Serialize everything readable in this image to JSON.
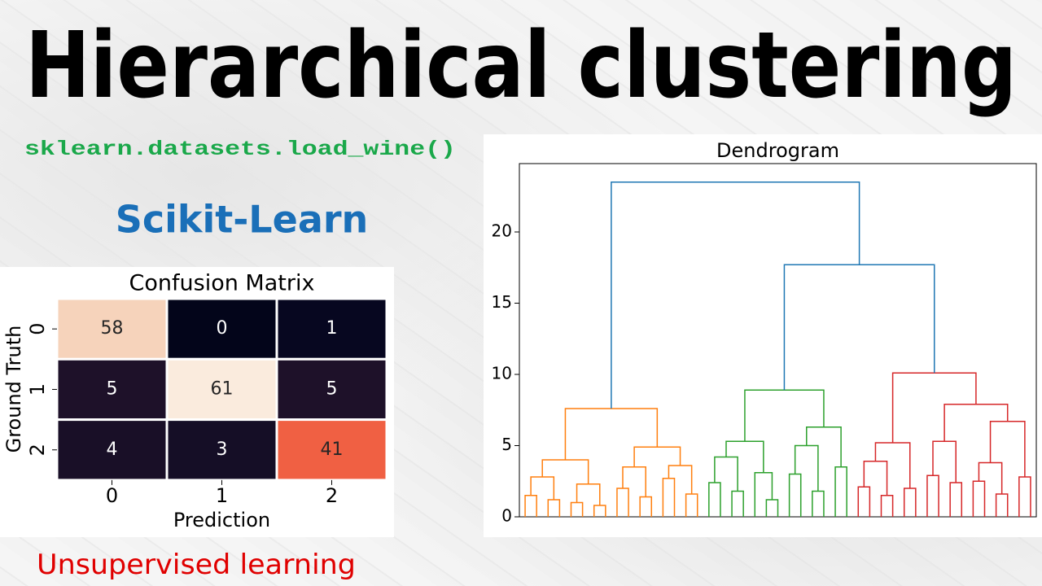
{
  "title": "Hierarchical clustering",
  "code": "sklearn.datasets.load_wine()",
  "library": "Scikit-Learn",
  "footer": "Unsupervised learning",
  "chart_data": [
    {
      "type": "heatmap",
      "title": "Confusion Matrix",
      "x_label": "Prediction",
      "y_label": "Ground Truth",
      "x_categories": [
        "0",
        "1",
        "2"
      ],
      "y_categories": [
        "0",
        "1",
        "2"
      ],
      "values": [
        [
          58,
          0,
          1
        ],
        [
          5,
          61,
          5
        ],
        [
          4,
          3,
          41
        ]
      ],
      "colors": [
        [
          "#f6d3bb",
          "#03051a",
          "#070720"
        ],
        [
          "#1e1129",
          "#faebdd",
          "#1e1129"
        ],
        [
          "#190f27",
          "#150e26",
          "#f06043"
        ]
      ]
    },
    {
      "type": "dendrogram",
      "title": "Dendrogram",
      "ylim": [
        0,
        24.8
      ],
      "yticks": [
        0,
        5,
        10,
        15,
        20
      ],
      "tree": {
        "height": 23.5,
        "color": "#1f77b4",
        "children": [
          {
            "height": 7.6,
            "color": "#ff7f0e",
            "children": [
              {
                "height": 4.0,
                "children": [
                  {
                    "height": 2.8,
                    "children": [
                      {
                        "height": 1.5,
                        "children": [
                          {
                            "height": 0
                          },
                          {
                            "height": 0
                          }
                        ]
                      },
                      {
                        "height": 1.2,
                        "children": [
                          {
                            "height": 0
                          },
                          {
                            "height": 0
                          }
                        ]
                      }
                    ]
                  },
                  {
                    "height": 2.3,
                    "children": [
                      {
                        "height": 1.0,
                        "children": [
                          {
                            "height": 0
                          },
                          {
                            "height": 0
                          }
                        ]
                      },
                      {
                        "height": 0.8,
                        "children": [
                          {
                            "height": 0
                          },
                          {
                            "height": 0
                          }
                        ]
                      }
                    ]
                  }
                ]
              },
              {
                "height": 4.9,
                "children": [
                  {
                    "height": 3.5,
                    "children": [
                      {
                        "height": 2.0,
                        "children": [
                          {
                            "height": 0
                          },
                          {
                            "height": 0
                          }
                        ]
                      },
                      {
                        "height": 1.4,
                        "children": [
                          {
                            "height": 0
                          },
                          {
                            "height": 0
                          }
                        ]
                      }
                    ]
                  },
                  {
                    "height": 3.6,
                    "children": [
                      {
                        "height": 2.7,
                        "children": [
                          {
                            "height": 0
                          },
                          {
                            "height": 0
                          }
                        ]
                      },
                      {
                        "height": 1.6,
                        "children": [
                          {
                            "height": 0
                          },
                          {
                            "height": 0
                          }
                        ]
                      }
                    ]
                  }
                ]
              }
            ]
          },
          {
            "height": 17.7,
            "children": [
              {
                "height": 8.9,
                "color": "#2ca02c",
                "children": [
                  {
                    "height": 5.3,
                    "children": [
                      {
                        "height": 4.2,
                        "children": [
                          {
                            "height": 2.4,
                            "children": [
                              {
                                "height": 0
                              },
                              {
                                "height": 0
                              }
                            ]
                          },
                          {
                            "height": 1.8,
                            "children": [
                              {
                                "height": 0
                              },
                              {
                                "height": 0
                              }
                            ]
                          }
                        ]
                      },
                      {
                        "height": 3.1,
                        "children": [
                          {
                            "height": 0
                          },
                          {
                            "height": 1.2,
                            "children": [
                              {
                                "height": 0
                              },
                              {
                                "height": 0
                              }
                            ]
                          }
                        ]
                      }
                    ]
                  },
                  {
                    "height": 6.3,
                    "children": [
                      {
                        "height": 5.0,
                        "children": [
                          {
                            "height": 3.0,
                            "children": [
                              {
                                "height": 0
                              },
                              {
                                "height": 0
                              }
                            ]
                          },
                          {
                            "height": 1.8,
                            "children": [
                              {
                                "height": 0
                              },
                              {
                                "height": 0
                              }
                            ]
                          }
                        ]
                      },
                      {
                        "height": 3.5,
                        "children": [
                          {
                            "height": 0
                          },
                          {
                            "height": 0
                          }
                        ]
                      }
                    ]
                  }
                ]
              },
              {
                "height": 10.1,
                "color": "#d62728",
                "children": [
                  {
                    "height": 5.2,
                    "children": [
                      {
                        "height": 3.9,
                        "children": [
                          {
                            "height": 2.1,
                            "children": [
                              {
                                "height": 0
                              },
                              {
                                "height": 0
                              }
                            ]
                          },
                          {
                            "height": 1.5,
                            "children": [
                              {
                                "height": 0
                              },
                              {
                                "height": 0
                              }
                            ]
                          }
                        ]
                      },
                      {
                        "height": 2.0,
                        "children": [
                          {
                            "height": 0
                          },
                          {
                            "height": 0
                          }
                        ]
                      }
                    ]
                  },
                  {
                    "height": 7.9,
                    "children": [
                      {
                        "height": 5.3,
                        "children": [
                          {
                            "height": 2.9,
                            "children": [
                              {
                                "height": 0
                              },
                              {
                                "height": 0
                              }
                            ]
                          },
                          {
                            "height": 2.4,
                            "children": [
                              {
                                "height": 0
                              },
                              {
                                "height": 0
                              }
                            ]
                          }
                        ]
                      },
                      {
                        "height": 6.7,
                        "children": [
                          {
                            "height": 3.8,
                            "children": [
                              {
                                "height": 2.5,
                                "children": [
                                  {
                                    "height": 0
                                  },
                                  {
                                    "height": 0
                                  }
                                ]
                              },
                              {
                                "height": 1.6,
                                "children": [
                                  {
                                    "height": 0
                                  },
                                  {
                                    "height": 0
                                  }
                                ]
                              }
                            ]
                          },
                          {
                            "height": 2.8,
                            "children": [
                              {
                                "height": 0
                              },
                              {
                                "height": 0
                              }
                            ]
                          }
                        ]
                      }
                    ]
                  }
                ]
              }
            ]
          }
        ]
      }
    }
  ]
}
